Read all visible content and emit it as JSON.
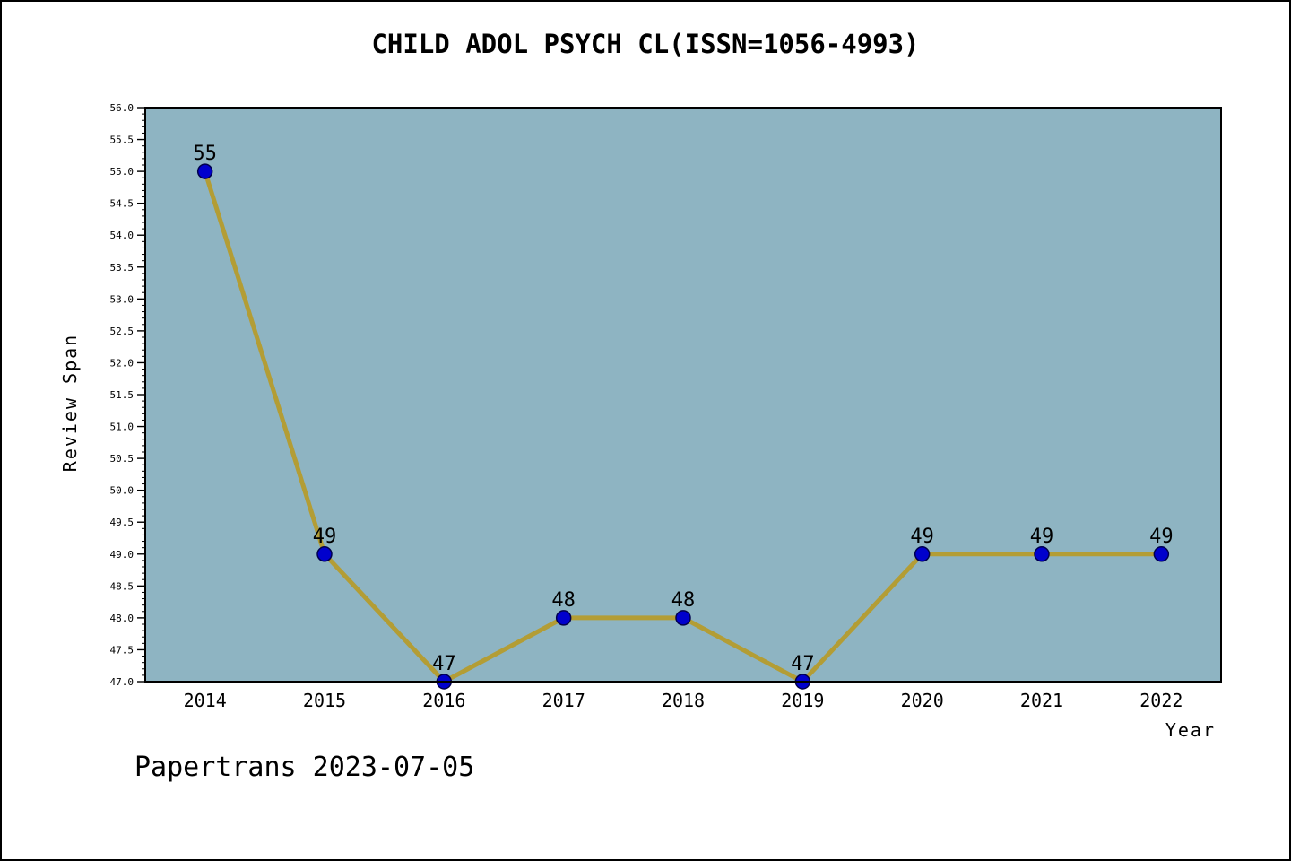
{
  "chart_data": {
    "type": "line",
    "title": "CHILD ADOL PSYCH CL(ISSN=1056-4993)",
    "xlabel": "Year",
    "ylabel": "Review Span",
    "annotation": "Papertrans 2023-07-05",
    "x": [
      2014,
      2015,
      2016,
      2017,
      2018,
      2019,
      2020,
      2021,
      2022
    ],
    "series": [
      {
        "name": "Review Span",
        "values": [
          55,
          49,
          47,
          48,
          48,
          47,
          49,
          49,
          49
        ]
      }
    ],
    "ylim": [
      47.0,
      56.0
    ],
    "xlim": [
      2013.5,
      2022.5
    ],
    "y_major_step": 0.5,
    "y_minor_step": 0.1,
    "grid": false,
    "legend": null,
    "colors": {
      "line": "#b39d35",
      "marker_fill": "#0000cd",
      "marker_edge": "#00004d",
      "plot_background": "#8eb4c2",
      "figure_background": "#ffffff",
      "axis": "#000000",
      "text": "#000000"
    }
  }
}
